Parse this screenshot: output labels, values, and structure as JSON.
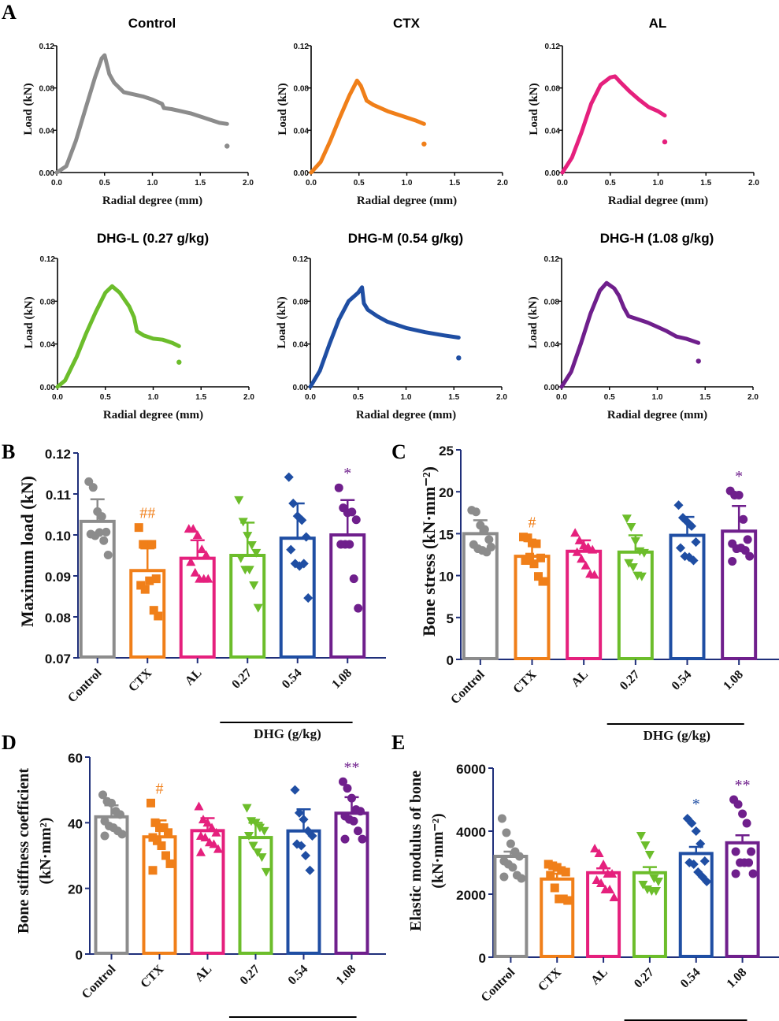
{
  "figure": {
    "panel_letters": [
      "A",
      "B",
      "C",
      "D",
      "E"
    ]
  },
  "chart_data": [
    {
      "panel": "A",
      "type": "line",
      "subplots": [
        {
          "title": "Control",
          "color": "#8c8c8c",
          "xlabel": "Radial degree (mm)",
          "ylabel": "Load (kN)",
          "xlim": [
            0,
            2.0
          ],
          "ylim": [
            0,
            0.12
          ],
          "xticks": [
            "0.0",
            "0.5",
            "1.0",
            "1.5",
            "2.0"
          ],
          "yticks": [
            "0.00",
            "0.04",
            "0.08",
            "0.12"
          ],
          "x": [
            0,
            0.05,
            0.1,
            0.2,
            0.3,
            0.4,
            0.47,
            0.5,
            0.55,
            0.6,
            0.7,
            0.8,
            0.9,
            1.0,
            1.1,
            1.12,
            1.2,
            1.3,
            1.4,
            1.5,
            1.6,
            1.7,
            1.78
          ],
          "y": [
            0,
            0.003,
            0.006,
            0.03,
            0.06,
            0.09,
            0.108,
            0.111,
            0.093,
            0.085,
            0.076,
            0.074,
            0.072,
            0.069,
            0.065,
            0.061,
            0.06,
            0.058,
            0.056,
            0.053,
            0.05,
            0.047,
            0.046
          ],
          "end_point": [
            1.78,
            0.025
          ]
        },
        {
          "title": "CTX",
          "color": "#f07f19",
          "xlabel": "Radial degree (mm)",
          "ylabel": "Load (kN)",
          "xlim": [
            0,
            2.0
          ],
          "ylim": [
            0,
            0.12
          ],
          "xticks": [
            "0.0",
            "0.5",
            "1.0",
            "1.5",
            "2.0"
          ],
          "yticks": [
            "0.00",
            "0.04",
            "0.08",
            "0.12"
          ],
          "x": [
            0,
            0.1,
            0.2,
            0.3,
            0.4,
            0.48,
            0.52,
            0.58,
            0.65,
            0.8,
            1.0,
            1.1,
            1.18
          ],
          "y": [
            0,
            0.01,
            0.03,
            0.052,
            0.073,
            0.087,
            0.082,
            0.068,
            0.064,
            0.058,
            0.052,
            0.049,
            0.046
          ],
          "end_point": [
            1.18,
            0.027
          ]
        },
        {
          "title": "AL",
          "color": "#e5207d",
          "xlabel": "Radial degree (mm)",
          "ylabel": "Load (kN)",
          "xlim": [
            0,
            2.0
          ],
          "ylim": [
            0,
            0.12
          ],
          "xticks": [
            "0.0",
            "0.5",
            "1.0",
            "1.5",
            "2.0"
          ],
          "yticks": [
            "0.00",
            "0.04",
            "0.08",
            "0.12"
          ],
          "x": [
            0,
            0.1,
            0.2,
            0.3,
            0.4,
            0.5,
            0.55,
            0.6,
            0.7,
            0.8,
            0.9,
            1.0,
            1.07
          ],
          "y": [
            0,
            0.014,
            0.038,
            0.065,
            0.083,
            0.09,
            0.091,
            0.086,
            0.077,
            0.069,
            0.062,
            0.058,
            0.054
          ],
          "end_point": [
            1.07,
            0.029
          ]
        },
        {
          "title": "DHG-L (0.27 g/kg)",
          "color": "#6cbd2b",
          "xlabel": "Radial degree (mm)",
          "ylabel": "Load (kN)",
          "xlim": [
            0,
            2.0
          ],
          "ylim": [
            0,
            0.12
          ],
          "xticks": [
            "0.0",
            "0.5",
            "1.0",
            "1.5",
            "2.0"
          ],
          "yticks": [
            "0.00",
            "0.04",
            "0.08",
            "0.12"
          ],
          "x": [
            0,
            0.08,
            0.2,
            0.3,
            0.4,
            0.5,
            0.57,
            0.65,
            0.75,
            0.8,
            0.83,
            0.9,
            1.0,
            1.1,
            1.2,
            1.27
          ],
          "y": [
            0,
            0.006,
            0.028,
            0.05,
            0.07,
            0.088,
            0.094,
            0.088,
            0.075,
            0.065,
            0.052,
            0.048,
            0.045,
            0.044,
            0.041,
            0.038
          ],
          "end_point": [
            1.27,
            0.023
          ]
        },
        {
          "title": "DHG-M (0.54 g/kg)",
          "color": "#1f4ea3",
          "xlabel": "Radial degree (mm)",
          "ylabel": "Load (kN)",
          "xlim": [
            0,
            2.0
          ],
          "ylim": [
            0,
            0.12
          ],
          "xticks": [
            "0.0",
            "0.5",
            "1.0",
            "1.5",
            "2.0"
          ],
          "yticks": [
            "0.00",
            "0.04",
            "0.08",
            "0.12"
          ],
          "x": [
            0,
            0.1,
            0.2,
            0.3,
            0.4,
            0.5,
            0.54,
            0.56,
            0.6,
            0.7,
            0.8,
            1.0,
            1.2,
            1.4,
            1.55
          ],
          "y": [
            0,
            0.015,
            0.04,
            0.063,
            0.08,
            0.088,
            0.093,
            0.078,
            0.072,
            0.066,
            0.061,
            0.055,
            0.051,
            0.048,
            0.046
          ],
          "end_point": [
            1.55,
            0.027
          ]
        },
        {
          "title": "DHG-H (1.08 g/kg)",
          "color": "#6f1f8c",
          "xlabel": "Radial degree (mm)",
          "ylabel": "Load (kN)",
          "xlim": [
            0,
            2.0
          ],
          "ylim": [
            0,
            0.12
          ],
          "xticks": [
            "0.0",
            "0.5",
            "1.0",
            "1.5",
            "2.0"
          ],
          "yticks": [
            "0.00",
            "0.04",
            "0.08",
            "0.12"
          ],
          "x": [
            0,
            0.1,
            0.2,
            0.3,
            0.4,
            0.47,
            0.55,
            0.6,
            0.65,
            0.7,
            0.8,
            0.9,
            1.0,
            1.1,
            1.2,
            1.3,
            1.43
          ],
          "y": [
            0,
            0.014,
            0.04,
            0.068,
            0.09,
            0.097,
            0.092,
            0.085,
            0.074,
            0.066,
            0.063,
            0.06,
            0.056,
            0.052,
            0.047,
            0.045,
            0.041
          ],
          "end_point": [
            1.43,
            0.024
          ]
        }
      ]
    },
    {
      "panel": "B",
      "type": "bar",
      "ylabel": "Maximum load (kN)",
      "ylim": [
        0.07,
        0.12
      ],
      "yticks": [
        "0.07",
        "0.08",
        "0.09",
        "0.10",
        "0.11",
        "0.12"
      ],
      "categories": [
        "Control",
        "CTX",
        "AL",
        "0.27",
        "0.54",
        "1.08"
      ],
      "group_label": "DHG (g/kg)",
      "colors": [
        "#8c8c8c",
        "#f07f19",
        "#e5207d",
        "#6cbd2b",
        "#1f4ea3",
        "#6f1f8c"
      ],
      "markers": [
        "circle",
        "square",
        "triangle-up",
        "triangle-down",
        "diamond",
        "circle"
      ],
      "means": [
        0.1033,
        0.0913,
        0.0943,
        0.095,
        0.0992,
        0.1
      ],
      "sd": [
        0.0054,
        0.0054,
        0.0044,
        0.008,
        0.0085,
        0.0085
      ],
      "points": [
        [
          0.113,
          0.1116,
          0.1057,
          0.1045,
          0.1007,
          0.1002,
          0.0998,
          0.1006,
          0.0986,
          0.0951
        ],
        [
          0.1018,
          0.0977,
          0.0977,
          0.0977,
          0.0893,
          0.0877,
          0.0867,
          0.0888,
          0.0816,
          0.0802
        ],
        [
          0.1015,
          0.1015,
          0.1,
          0.0965,
          0.0951,
          0.0934,
          0.0908,
          0.0893,
          0.0893,
          0.0893
        ],
        [
          0.1085,
          0.1032,
          0.0998,
          0.0975,
          0.0956,
          0.0943,
          0.0915,
          0.0915,
          0.0877,
          0.0822
        ],
        [
          0.1141,
          0.1077,
          0.1046,
          0.1036,
          0.0995,
          0.0964,
          0.093,
          0.0924,
          0.093,
          0.0846
        ],
        [
          0.1115,
          0.1066,
          0.1054,
          0.1056,
          0.1037,
          0.0977,
          0.0977,
          0.0977,
          0.0893,
          0.0821
        ]
      ],
      "annotations": [
        {
          "category": "CTX",
          "text": "##"
        },
        {
          "category": "1.08",
          "text": "*"
        }
      ]
    },
    {
      "panel": "C",
      "type": "bar",
      "ylabel": "Bone stress (kN·mm⁻²)",
      "ylim": [
        0,
        25
      ],
      "yticks": [
        "0",
        "5",
        "10",
        "15",
        "20",
        "25"
      ],
      "categories": [
        "Control",
        "CTX",
        "AL",
        "0.27",
        "0.54",
        "1.08"
      ],
      "group_label": "DHG (g/kg)",
      "colors": [
        "#8c8c8c",
        "#f07f19",
        "#e5207d",
        "#6cbd2b",
        "#1f4ea3",
        "#6f1f8c"
      ],
      "markers": [
        "circle",
        "square",
        "triangle-up",
        "triangle-down",
        "diamond",
        "circle"
      ],
      "means": [
        15.0,
        12.3,
        12.9,
        12.8,
        14.8,
        15.3
      ],
      "sd": [
        1.6,
        1.8,
        1.3,
        2.0,
        2.2,
        3.0
      ],
      "points": [
        [
          17.8,
          17.6,
          16.0,
          15.5,
          14.3,
          13.7,
          13.2,
          13.0,
          12.8,
          13.4
        ],
        [
          14.6,
          14.5,
          13.9,
          13.8,
          12.1,
          11.8,
          12.2,
          11.4,
          9.9,
          9.3
        ],
        [
          15.1,
          14.2,
          13.6,
          13.4,
          13.1,
          12.8,
          12.0,
          11.2,
          10.2,
          10.1
        ],
        [
          16.8,
          15.8,
          14.1,
          12.9,
          12.7,
          11.5,
          11.0,
          10.0,
          9.9
        ],
        [
          18.4,
          16.9,
          16.4,
          15.9,
          14.0,
          13.3,
          12.3,
          12.2,
          11.8
        ],
        [
          20.1,
          19.6,
          19.6,
          16.7,
          14.3,
          13.8,
          13.2,
          13.3,
          13.0,
          12.3,
          11.7
        ]
      ],
      "annotations": [
        {
          "category": "CTX",
          "text": "#"
        },
        {
          "category": "1.08",
          "text": "*"
        }
      ]
    },
    {
      "panel": "D",
      "type": "bar",
      "ylabel": "Bone stiffness coefficient (kN·mm²)",
      "ylim": [
        0,
        60
      ],
      "yticks": [
        "0",
        "20",
        "40",
        "60"
      ],
      "categories": [
        "Control",
        "CTX",
        "AL",
        "0.27",
        "0.54",
        "1.08"
      ],
      "group_label": "DHG (g/kg)",
      "colors": [
        "#8c8c8c",
        "#f07f19",
        "#e5207d",
        "#6cbd2b",
        "#1f4ea3",
        "#6f1f8c"
      ],
      "markers": [
        "circle",
        "square",
        "triangle-up",
        "triangle-down",
        "diamond",
        "circle"
      ],
      "means": [
        41.8,
        35.7,
        37.6,
        35.5,
        37.5,
        42.9
      ],
      "sd": [
        3.5,
        5.0,
        3.8,
        4.5,
        6.6,
        4.9
      ],
      "points": [
        [
          48.5,
          46.5,
          46.0,
          43.5,
          42.5,
          40.5,
          39.0,
          38.5,
          37.5,
          36.5,
          36.0
        ],
        [
          46.0,
          40.0,
          38.5,
          38.5,
          37.0,
          35.5,
          34.5,
          33.0,
          30.0,
          27.5,
          25.5
        ],
        [
          45.0,
          41.0,
          40.0,
          38.5,
          37.0,
          36.0,
          35.5,
          34.0,
          33.5,
          32.0,
          31.0
        ],
        [
          44.5,
          40.5,
          40.0,
          38.5,
          37.5,
          36.0,
          33.0,
          31.0,
          29.5,
          25.0
        ],
        [
          50.0,
          43.0,
          41.0,
          37.5,
          36.0,
          33.5,
          33.0,
          30.0,
          25.5
        ],
        [
          52.5,
          50.5,
          47.5,
          44.0,
          43.5,
          42.0,
          41.0,
          40.5,
          37.5,
          35.0,
          35.0
        ]
      ],
      "annotations": [
        {
          "category": "CTX",
          "text": "#"
        },
        {
          "category": "1.08",
          "text": "**"
        }
      ]
    },
    {
      "panel": "E",
      "type": "bar",
      "ylabel": "Elastic modulus of bone (kN·mm⁻²)",
      "ylim": [
        0,
        6000
      ],
      "yticks": [
        "0",
        "2000",
        "4000",
        "6000"
      ],
      "categories": [
        "Control",
        "CTX",
        "AL",
        "0.27",
        "0.54",
        "1.08"
      ],
      "group_label": "DHG (g/kg)",
      "colors": [
        "#8c8c8c",
        "#f07f19",
        "#e5207d",
        "#6cbd2b",
        "#1f4ea3",
        "#6f1f8c"
      ],
      "markers": [
        "circle",
        "square",
        "triangle-up",
        "triangle-down",
        "diamond",
        "circle"
      ],
      "means": [
        3200,
        2480,
        2680,
        2680,
        3290,
        3630
      ],
      "sd": [
        150,
        170,
        140,
        180,
        210,
        240
      ],
      "points": [
        [
          4400,
          3950,
          3600,
          3350,
          3200,
          3050,
          2950,
          2850,
          2600,
          2500,
          2550
        ],
        [
          2950,
          2900,
          2850,
          2750,
          2700,
          2600,
          2200,
          1850,
          1850,
          1800
        ],
        [
          3450,
          3300,
          2950,
          2650,
          2650,
          2450,
          2350,
          2150,
          2150,
          1900
        ],
        [
          3850,
          3550,
          3250,
          2500,
          2400,
          2300,
          2150,
          2100,
          2100
        ],
        [
          4400,
          4250,
          4000,
          3600,
          3050,
          3000,
          2950,
          2700,
          2550,
          2400
        ],
        [
          5000,
          4850,
          4550,
          4250,
          3350,
          3350,
          3000,
          3000,
          3000,
          2650,
          2650
        ]
      ],
      "annotations": [
        {
          "category": "0.54",
          "text": "*"
        },
        {
          "category": "1.08",
          "text": "**"
        }
      ]
    }
  ]
}
